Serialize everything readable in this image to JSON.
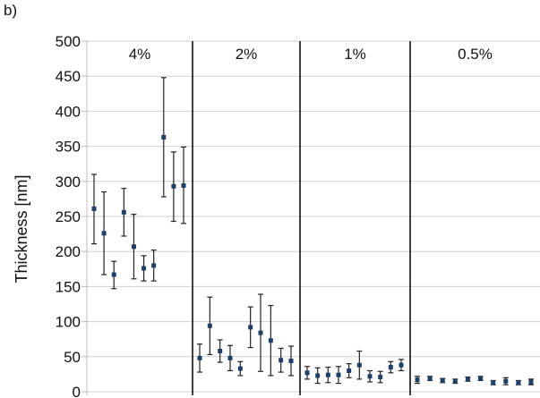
{
  "panel_label": "b)",
  "chart_data": {
    "type": "scatter",
    "ylabel": "Thickness [nm]",
    "ylim": [
      0,
      500
    ],
    "yticks": [
      0,
      50,
      100,
      150,
      200,
      250,
      300,
      350,
      400,
      450,
      500
    ],
    "grid": "horizontal",
    "marker_color": "#1f3f66",
    "groups": [
      {
        "label": "4%",
        "points": [
          {
            "y": 261,
            "err_low": 50,
            "err_high": 49
          },
          {
            "y": 226,
            "err_low": 59,
            "err_high": 59
          },
          {
            "y": 167,
            "err_low": 20,
            "err_high": 19
          },
          {
            "y": 256,
            "err_low": 34,
            "err_high": 34
          },
          {
            "y": 207,
            "err_low": 46,
            "err_high": 46
          },
          {
            "y": 176,
            "err_low": 18,
            "err_high": 18
          },
          {
            "y": 180,
            "err_low": 22,
            "err_high": 22
          },
          {
            "y": 363,
            "err_low": 85,
            "err_high": 85
          },
          {
            "y": 293,
            "err_low": 50,
            "err_high": 49
          },
          {
            "y": 294,
            "err_low": 54,
            "err_high": 55
          }
        ]
      },
      {
        "label": "2%",
        "points": [
          {
            "y": 48,
            "err_low": 20,
            "err_high": 20
          },
          {
            "y": 94,
            "err_low": 41,
            "err_high": 41
          },
          {
            "y": 58,
            "err_low": 16,
            "err_high": 16
          },
          {
            "y": 48,
            "err_low": 18,
            "err_high": 18
          },
          {
            "y": 33,
            "err_low": 10,
            "err_high": 10
          },
          {
            "y": 92,
            "err_low": 29,
            "err_high": 29
          },
          {
            "y": 84,
            "err_low": 55,
            "err_high": 55
          },
          {
            "y": 73,
            "err_low": 50,
            "err_high": 50
          },
          {
            "y": 45,
            "err_low": 17,
            "err_high": 17
          },
          {
            "y": 44,
            "err_low": 21,
            "err_high": 21
          }
        ]
      },
      {
        "label": "1%",
        "points": [
          {
            "y": 27,
            "err_low": 9,
            "err_high": 9
          },
          {
            "y": 23,
            "err_low": 11,
            "err_high": 11
          },
          {
            "y": 24,
            "err_low": 11,
            "err_high": 11
          },
          {
            "y": 24,
            "err_low": 12,
            "err_high": 12
          },
          {
            "y": 30,
            "err_low": 10,
            "err_high": 10
          },
          {
            "y": 38,
            "err_low": 20,
            "err_high": 20
          },
          {
            "y": 22,
            "err_low": 8,
            "err_high": 8
          },
          {
            "y": 21,
            "err_low": 8,
            "err_high": 8
          },
          {
            "y": 35,
            "err_low": 8,
            "err_high": 8
          },
          {
            "y": 38,
            "err_low": 8,
            "err_high": 8
          }
        ]
      },
      {
        "label": "0.5%",
        "points": [
          {
            "y": 17,
            "err_low": 5,
            "err_high": 5
          },
          {
            "y": 19,
            "err_low": 3,
            "err_high": 3
          },
          {
            "y": 16,
            "err_low": 3,
            "err_high": 3
          },
          {
            "y": 15,
            "err_low": 3,
            "err_high": 3
          },
          {
            "y": 18,
            "err_low": 3,
            "err_high": 3
          },
          {
            "y": 19,
            "err_low": 3,
            "err_high": 3
          },
          {
            "y": 13,
            "err_low": 3,
            "err_high": 3
          },
          {
            "y": 15,
            "err_low": 5,
            "err_high": 5
          },
          {
            "y": 13,
            "err_low": 3,
            "err_high": 3
          },
          {
            "y": 14,
            "err_low": 4,
            "err_high": 4
          }
        ]
      }
    ]
  }
}
